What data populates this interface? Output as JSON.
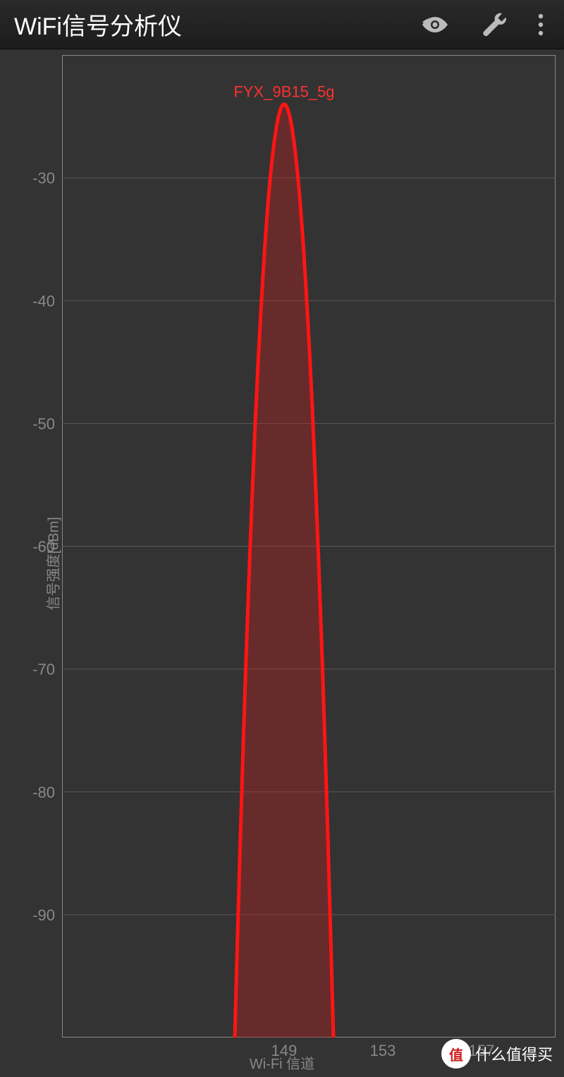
{
  "header": {
    "title": "WiFi信号分析仪",
    "icons": {
      "eye": "eye-icon",
      "wrench": "wrench-icon",
      "menu": "menu-icon"
    }
  },
  "chart": {
    "type": "signal-parabola",
    "ylabel": "信号强度[dBm]",
    "xlabel": "Wi-Fi 信道",
    "ylim": [
      -100,
      -20
    ],
    "ytick_step": 10,
    "yticks": [
      -30,
      -40,
      -50,
      -60,
      -70,
      -80,
      -90
    ],
    "xticks": [
      149,
      153,
      157
    ],
    "xrange": [
      140,
      160
    ],
    "background_color": "#333333",
    "grid_color": "#5a5a5a",
    "border_color": "#888888",
    "label_color": "#888888",
    "label_fontsize": 20,
    "tick_fontsize": 22,
    "networks": [
      {
        "ssid": "FYX_9B15_5g",
        "center_channel": 149,
        "peak_dbm": -24,
        "half_width_channels": 2.0,
        "stroke_color": "#ff1515",
        "fill_color": "rgba(200,30,30,0.35)",
        "stroke_width": 5,
        "label_color": "#ff3030",
        "label_fontsize": 22
      }
    ]
  },
  "watermark": {
    "badge": "值",
    "text": "什么值得买"
  }
}
